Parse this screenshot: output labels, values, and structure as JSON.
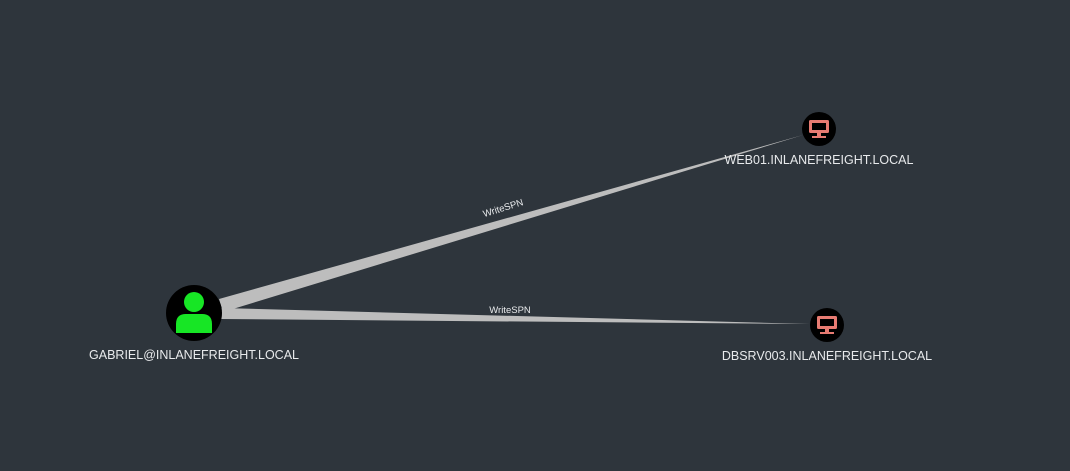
{
  "graph": {
    "background": "#2e353c",
    "edge_color": "#bdbdbd",
    "nodes": [
      {
        "id": "user",
        "label": "GABRIEL@INLANEFREIGHT.LOCAL",
        "type": "user",
        "icon": "user-icon",
        "icon_color": "#17e625",
        "fill": "#000000"
      },
      {
        "id": "web01",
        "label": "WEB01.INLANEFREIGHT.LOCAL",
        "type": "computer",
        "icon": "computer-icon",
        "icon_color": "#e77b72",
        "fill": "#000000"
      },
      {
        "id": "dbsrv003",
        "label": "DBSRV003.INLANEFREIGHT.LOCAL",
        "type": "computer",
        "icon": "computer-icon",
        "icon_color": "#e77b72",
        "fill": "#000000"
      }
    ],
    "edges": [
      {
        "from": "user",
        "to": "web01",
        "label": "WriteSPN"
      },
      {
        "from": "user",
        "to": "dbsrv003",
        "label": "WriteSPN"
      }
    ]
  }
}
